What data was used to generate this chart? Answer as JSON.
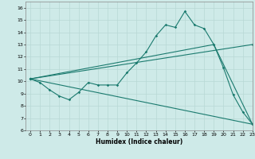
{
  "xlabel": "Humidex (Indice chaleur)",
  "xlim": [
    -0.5,
    23
  ],
  "ylim": [
    6,
    16.5
  ],
  "xticks": [
    0,
    1,
    2,
    3,
    4,
    5,
    6,
    7,
    8,
    9,
    10,
    11,
    12,
    13,
    14,
    15,
    16,
    17,
    18,
    19,
    20,
    21,
    22,
    23
  ],
  "yticks": [
    6,
    7,
    8,
    9,
    10,
    11,
    12,
    13,
    14,
    15,
    16
  ],
  "bg_color": "#ceeae8",
  "grid_color": "#b8d8d5",
  "line_color": "#1a7a6e",
  "series1_x": [
    0,
    1,
    2,
    3,
    4,
    5,
    6,
    7,
    8,
    9,
    10,
    11,
    12,
    13,
    14,
    15,
    16,
    17,
    18,
    19,
    20,
    21,
    22,
    23
  ],
  "series1_y": [
    10.2,
    9.9,
    9.3,
    8.8,
    8.5,
    9.1,
    9.9,
    9.7,
    9.7,
    9.7,
    10.7,
    11.5,
    12.4,
    13.7,
    14.6,
    14.4,
    15.7,
    14.6,
    14.3,
    13.0,
    11.1,
    8.9,
    7.5,
    6.5
  ],
  "series2_x": [
    0,
    19,
    23
  ],
  "series2_y": [
    10.2,
    13.0,
    6.5
  ],
  "series3_x": [
    0,
    23
  ],
  "series3_y": [
    10.2,
    13.0
  ],
  "series4_x": [
    0,
    23
  ],
  "series4_y": [
    10.2,
    6.5
  ]
}
